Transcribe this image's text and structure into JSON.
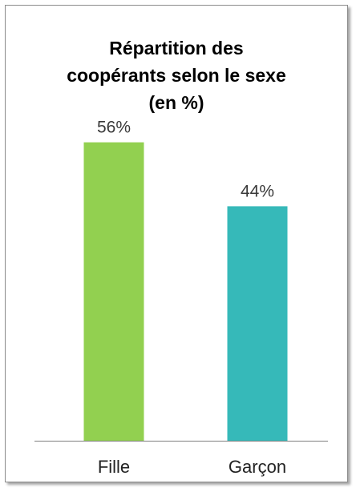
{
  "chart_data": {
    "type": "bar",
    "title_lines": [
      "Répartition des",
      "coopérants selon le sexe",
      "(en %)"
    ],
    "categories": [
      "Fille",
      "Garçon"
    ],
    "values": [
      56,
      44
    ],
    "data_labels": [
      "56%",
      "44%"
    ],
    "colors": [
      "#92d050",
      "#36b9b9"
    ],
    "ylim": [
      0,
      60
    ],
    "grid": false,
    "legend": "none",
    "xlabel": "",
    "ylabel": ""
  }
}
